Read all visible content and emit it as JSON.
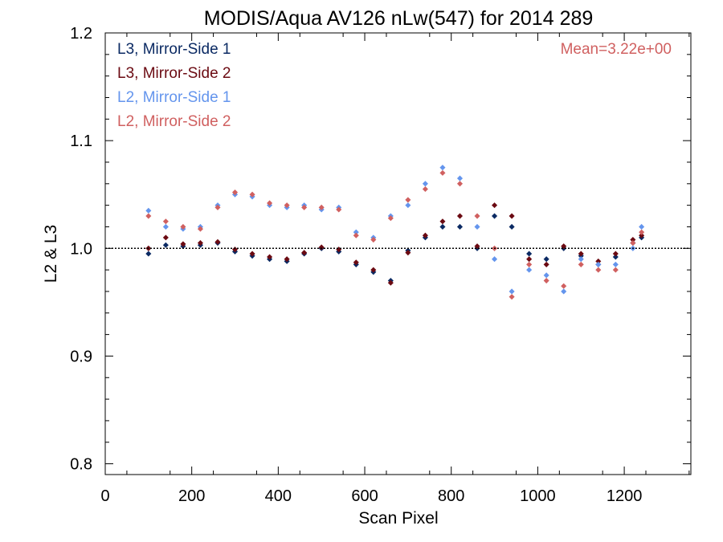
{
  "chart_data": {
    "type": "scatter",
    "title": "MODIS/Aqua AV126 nLw(547) for 2014 289",
    "xlabel": "Scan Pixel",
    "ylabel": "L2 & L3",
    "xlim": [
      0,
      1354
    ],
    "ylim": [
      0.79,
      1.2
    ],
    "xticks": [
      "0",
      "200",
      "400",
      "600",
      "800",
      "1000",
      "1200"
    ],
    "yticks": [
      "0.8",
      "0.9",
      "1.0",
      "1.1",
      "1.2"
    ],
    "reference_line": 1.0,
    "annotation": "Mean=3.22e+00",
    "annotation_color": "#d06060",
    "series": [
      {
        "name": "L3, Mirror-Side 1",
        "color": "#0b2a63",
        "x": [
          100,
          140,
          180,
          220,
          260,
          300,
          340,
          380,
          420,
          460,
          500,
          540,
          580,
          620,
          660,
          700,
          740,
          780,
          820,
          860,
          900,
          940,
          980,
          1020,
          1060,
          1100,
          1140,
          1180,
          1220,
          1240
        ],
        "y": [
          0.995,
          1.003,
          1.002,
          1.003,
          1.005,
          0.997,
          0.993,
          0.99,
          0.988,
          0.995,
          1.0,
          0.997,
          0.985,
          0.978,
          0.97,
          0.998,
          1.01,
          1.02,
          1.02,
          1.0,
          1.03,
          1.02,
          0.995,
          0.99,
          1.0,
          0.993,
          0.985,
          0.992,
          1.005,
          1.01
        ]
      },
      {
        "name": "L3, Mirror-Side 2",
        "color": "#6b0a12",
        "x": [
          100,
          140,
          180,
          220,
          260,
          300,
          340,
          380,
          420,
          460,
          500,
          540,
          580,
          620,
          660,
          700,
          740,
          780,
          820,
          860,
          900,
          940,
          980,
          1020,
          1060,
          1100,
          1140,
          1180,
          1220,
          1240
        ],
        "y": [
          1.0,
          1.01,
          1.004,
          1.005,
          1.006,
          0.999,
          0.995,
          0.992,
          0.99,
          0.996,
          1.001,
          0.999,
          0.987,
          0.98,
          0.968,
          0.996,
          1.012,
          1.025,
          1.03,
          1.002,
          1.04,
          1.03,
          0.99,
          0.985,
          1.002,
          0.995,
          0.988,
          0.995,
          1.008,
          1.012
        ]
      },
      {
        "name": "L2, Mirror-Side 1",
        "color": "#6495ed",
        "x": [
          100,
          140,
          180,
          220,
          260,
          300,
          340,
          380,
          420,
          460,
          500,
          540,
          580,
          620,
          660,
          700,
          740,
          780,
          820,
          860,
          900,
          940,
          980,
          1020,
          1060,
          1100,
          1140,
          1180,
          1220,
          1240
        ],
        "y": [
          1.035,
          1.02,
          1.018,
          1.02,
          1.04,
          1.05,
          1.048,
          1.04,
          1.038,
          1.04,
          1.036,
          1.038,
          1.015,
          1.01,
          1.03,
          1.04,
          1.06,
          1.075,
          1.065,
          1.02,
          0.99,
          0.96,
          0.98,
          0.975,
          0.96,
          0.99,
          0.985,
          0.985,
          1.0,
          1.02
        ]
      },
      {
        "name": "L2, Mirror-Side 2",
        "color": "#d06060",
        "x": [
          100,
          140,
          180,
          220,
          260,
          300,
          340,
          380,
          420,
          460,
          500,
          540,
          580,
          620,
          660,
          700,
          740,
          780,
          820,
          860,
          900,
          940,
          980,
          1020,
          1060,
          1100,
          1140,
          1180,
          1220,
          1240
        ],
        "y": [
          1.03,
          1.025,
          1.02,
          1.018,
          1.038,
          1.052,
          1.05,
          1.042,
          1.04,
          1.038,
          1.038,
          1.036,
          1.012,
          1.008,
          1.028,
          1.045,
          1.055,
          1.07,
          1.06,
          1.03,
          1.0,
          0.955,
          0.985,
          0.97,
          0.965,
          0.985,
          0.98,
          0.98,
          1.005,
          1.015
        ]
      }
    ]
  }
}
